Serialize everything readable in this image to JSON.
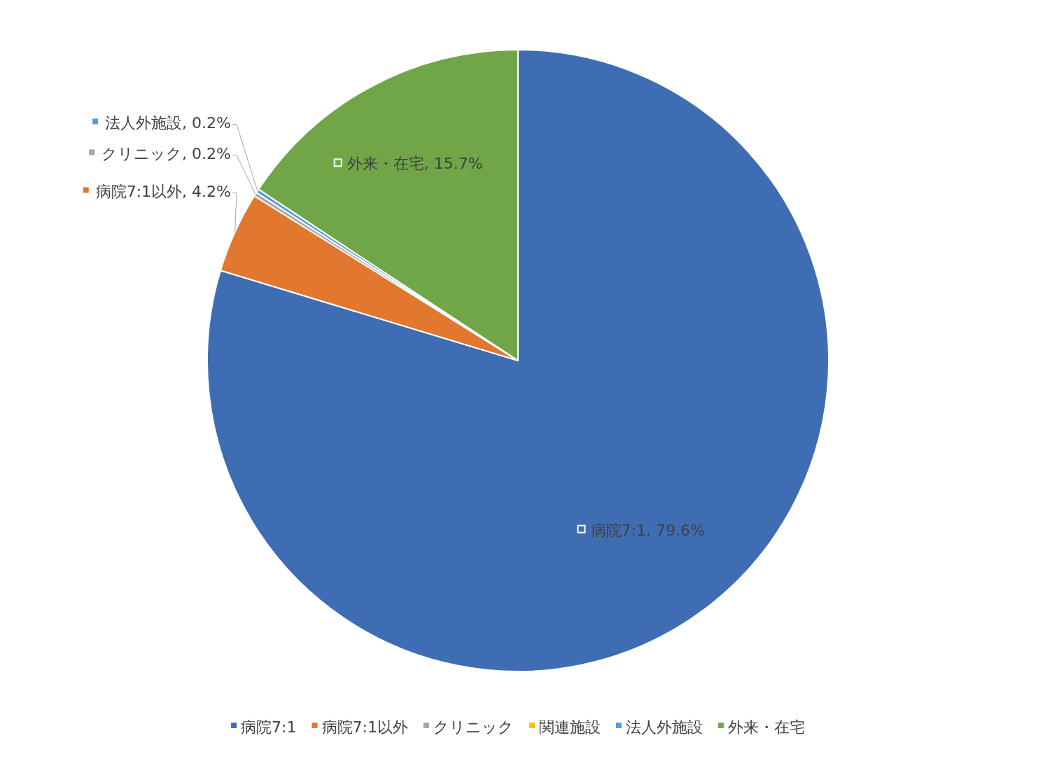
{
  "chart_data": {
    "type": "pie",
    "categories": [
      "病院7:1",
      "病院7:1以外",
      "クリニック",
      "関連施設",
      "法人外施設",
      "外来・在宅"
    ],
    "values": [
      79.6,
      4.2,
      0.2,
      0,
      0.2,
      15.7
    ],
    "colors": [
      "#3f6db3",
      "#e2772f",
      "#a5a5a5",
      "#ffc000",
      "#5b9bd5",
      "#70a648"
    ],
    "value_labels": [
      "病院7:1, 79.6%",
      "病院7:1以外, 4.2%",
      "クリニック, 0.2%",
      null,
      "法人外施設, 0.2%",
      "外来・在宅, 15.7%"
    ],
    "legend": "bottom"
  }
}
